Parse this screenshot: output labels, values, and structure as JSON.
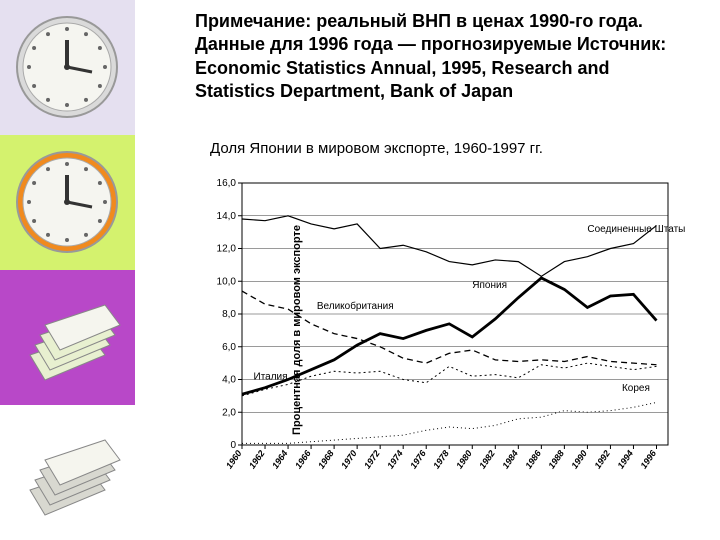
{
  "note_text": "Примечание: реальный ВНП в ценах 1990-го года. Данные для 1996 года — прогнозируемые Источник: Economic Statistics Annual, 1995, Research and Statistics Department, Bank of Japan",
  "chart_title": "Доля Японии в мировом экспорте, 1960-1997 гг.",
  "ylabel": "Процентная доля в мировом экспорте",
  "chart": {
    "type": "line",
    "xlim": [
      1960,
      1997
    ],
    "ylim": [
      0,
      16
    ],
    "ytick_step": 2,
    "yticks": [
      "0",
      "2,0",
      "4,0",
      "6,0",
      "8,0",
      "10,0",
      "12,0",
      "14,0",
      "16,0"
    ],
    "xticks": [
      1960,
      1962,
      1964,
      1966,
      1968,
      1970,
      1972,
      1974,
      1976,
      1978,
      1980,
      1982,
      1984,
      1986,
      1988,
      1990,
      1992,
      1994,
      1996
    ],
    "background_color": "#ffffff",
    "grid_color": "#000000",
    "axis_color": "#000000",
    "series": {
      "usa": {
        "label": "Соединенные Штаты",
        "color": "#000000",
        "width": 1.2,
        "dash": "",
        "x": [
          1960,
          1962,
          1964,
          1966,
          1968,
          1970,
          1972,
          1974,
          1976,
          1978,
          1980,
          1982,
          1984,
          1986,
          1988,
          1990,
          1992,
          1994,
          1996
        ],
        "y": [
          13.8,
          13.7,
          14.0,
          13.5,
          13.2,
          13.5,
          12.0,
          12.2,
          11.8,
          11.2,
          11.0,
          11.3,
          11.2,
          10.3,
          11.2,
          11.5,
          12.0,
          12.3,
          13.4
        ]
      },
      "japan": {
        "label": "Япония",
        "color": "#000000",
        "width": 2.8,
        "dash": "",
        "x": [
          1960,
          1962,
          1964,
          1966,
          1968,
          1970,
          1972,
          1974,
          1976,
          1978,
          1980,
          1982,
          1984,
          1986,
          1988,
          1990,
          1992,
          1994,
          1996
        ],
        "y": [
          3.1,
          3.5,
          4.0,
          4.6,
          5.2,
          6.1,
          6.8,
          6.5,
          7.0,
          7.4,
          6.6,
          7.7,
          9.0,
          10.2,
          9.5,
          8.4,
          9.1,
          9.2,
          7.6
        ]
      },
      "uk": {
        "label": "Великобритания",
        "color": "#000000",
        "width": 1.3,
        "dash": "6 4",
        "x": [
          1960,
          1962,
          1964,
          1966,
          1968,
          1970,
          1972,
          1974,
          1976,
          1978,
          1980,
          1982,
          1984,
          1986,
          1988,
          1990,
          1992,
          1994,
          1996
        ],
        "y": [
          9.4,
          8.6,
          8.3,
          7.4,
          6.8,
          6.5,
          6.0,
          5.3,
          5.0,
          5.6,
          5.8,
          5.2,
          5.1,
          5.2,
          5.1,
          5.4,
          5.1,
          5.0,
          4.9
        ]
      },
      "italy": {
        "label": "Италия",
        "color": "#000000",
        "width": 1.0,
        "dash": "2 3",
        "x": [
          1960,
          1962,
          1964,
          1966,
          1968,
          1970,
          1972,
          1974,
          1976,
          1978,
          1980,
          1982,
          1984,
          1986,
          1988,
          1990,
          1992,
          1994,
          1996
        ],
        "y": [
          3.0,
          3.4,
          3.7,
          4.2,
          4.5,
          4.4,
          4.5,
          4.0,
          3.8,
          4.8,
          4.2,
          4.3,
          4.1,
          4.9,
          4.7,
          5.0,
          4.8,
          4.6,
          4.8
        ]
      },
      "korea": {
        "label": "Корея",
        "color": "#000000",
        "width": 1.0,
        "dash": "1 3",
        "x": [
          1960,
          1962,
          1964,
          1966,
          1968,
          1970,
          1972,
          1974,
          1976,
          1978,
          1980,
          1982,
          1984,
          1986,
          1988,
          1990,
          1992,
          1994,
          1996
        ],
        "y": [
          0.1,
          0.1,
          0.1,
          0.2,
          0.3,
          0.4,
          0.5,
          0.6,
          0.9,
          1.1,
          1.0,
          1.2,
          1.6,
          1.7,
          2.1,
          2.0,
          2.1,
          2.3,
          2.6
        ]
      }
    },
    "series_label_positions": {
      "usa": {
        "x": 1990,
        "y": 13.0
      },
      "japan": {
        "x": 1980,
        "y": 9.6
      },
      "uk": {
        "x": 1966.5,
        "y": 8.3
      },
      "italy": {
        "x": 1961,
        "y": 4.0
      },
      "korea": {
        "x": 1993,
        "y": 3.3
      }
    }
  },
  "sidebar": {
    "tiles": [
      {
        "bg": "#e5e0f0",
        "type": "clock",
        "clock_color": "#dadada",
        "accent": "#b0b0b0"
      },
      {
        "bg": "#d4f26e",
        "type": "clock",
        "clock_color": "#f08a1e",
        "accent": "#ffcc33"
      },
      {
        "bg": "#b848c8",
        "type": "papers",
        "paper_color": "#e8f0d0"
      },
      {
        "bg": "#ffffff",
        "type": "papers",
        "paper_color": "#d8d8d0"
      }
    ]
  }
}
